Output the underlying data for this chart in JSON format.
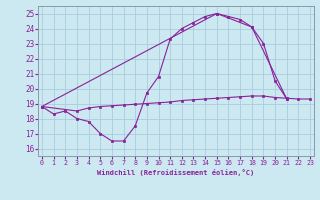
{
  "bg_color": "#cce8f0",
  "grid_color": "#aaccdd",
  "line_color": "#882299",
  "xlabel": "Windchill (Refroidissement éolien,°C)",
  "x_ticks": [
    0,
    1,
    2,
    3,
    4,
    5,
    6,
    7,
    8,
    9,
    10,
    11,
    12,
    13,
    14,
    15,
    16,
    17,
    18,
    19,
    20,
    21,
    22,
    23
  ],
  "y_ticks": [
    16,
    17,
    18,
    19,
    20,
    21,
    22,
    23,
    24,
    25
  ],
  "xlim": [
    -0.3,
    23.3
  ],
  "ylim": [
    15.5,
    25.5
  ],
  "line1_x": [
    0,
    1,
    2,
    3,
    4,
    5,
    6,
    7,
    8,
    9,
    10,
    11,
    12,
    13,
    14,
    15,
    16,
    17,
    18,
    19,
    20,
    21
  ],
  "line1_y": [
    18.8,
    18.3,
    18.5,
    18.0,
    17.8,
    17.0,
    16.5,
    16.5,
    17.5,
    19.7,
    20.8,
    23.3,
    24.0,
    24.4,
    24.8,
    25.0,
    24.8,
    24.6,
    24.1,
    23.0,
    20.5,
    19.3
  ],
  "line2_x": [
    0,
    15,
    18,
    21
  ],
  "line2_y": [
    18.8,
    25.0,
    24.1,
    19.3
  ],
  "line3_x": [
    0,
    3,
    4,
    5,
    6,
    7,
    8,
    9,
    10,
    11,
    12,
    13,
    14,
    15,
    16,
    17,
    18,
    19,
    20,
    21,
    22,
    23
  ],
  "line3_y": [
    18.8,
    18.5,
    18.7,
    18.8,
    18.85,
    18.9,
    18.95,
    19.0,
    19.05,
    19.1,
    19.2,
    19.25,
    19.3,
    19.35,
    19.4,
    19.45,
    19.5,
    19.5,
    19.4,
    19.35,
    19.3,
    19.3
  ]
}
